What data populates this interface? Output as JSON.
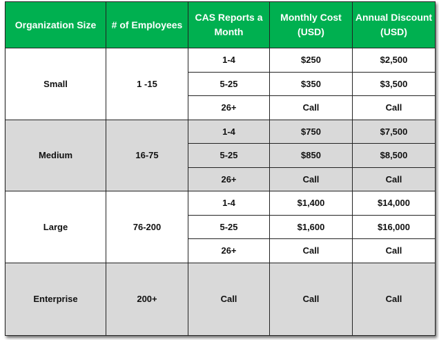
{
  "header": [
    "Organization Size",
    "# of Employees",
    "CAS Reports a Month",
    "Monthly Cost (USD)",
    "Annual Discount (USD)"
  ],
  "groups": [
    {
      "size": "Small",
      "employees": "1 -15",
      "tiers": [
        {
          "reports": "1-4",
          "monthly": "$250",
          "annual": "$2,500"
        },
        {
          "reports": "5-25",
          "monthly": "$350",
          "annual": "$3,500"
        },
        {
          "reports": "26+",
          "monthly": "Call",
          "annual": "Call"
        }
      ]
    },
    {
      "size": "Medium",
      "employees": "16-75",
      "tiers": [
        {
          "reports": "1-4",
          "monthly": "$750",
          "annual": "$7,500"
        },
        {
          "reports": "5-25",
          "monthly": "$850",
          "annual": "$8,500"
        },
        {
          "reports": "26+",
          "monthly": "Call",
          "annual": "Call"
        }
      ]
    },
    {
      "size": "Large",
      "employees": "76-200",
      "tiers": [
        {
          "reports": "1-4",
          "monthly": "$1,400",
          "annual": "$14,000"
        },
        {
          "reports": "5-25",
          "monthly": "$1,600",
          "annual": "$16,000"
        },
        {
          "reports": "26+",
          "monthly": "Call",
          "annual": "Call"
        }
      ]
    },
    {
      "size": "Enterprise",
      "employees": "200+",
      "tiers": [
        {
          "reports": "Call",
          "monthly": "Call",
          "annual": "Call"
        }
      ]
    }
  ]
}
